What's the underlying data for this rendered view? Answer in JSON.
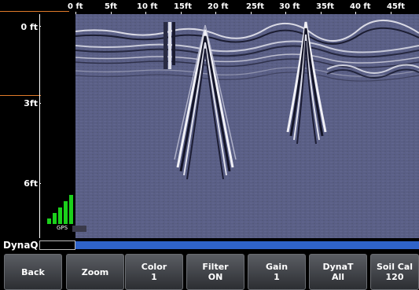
{
  "ruler": {
    "ticks": [
      "0 ft",
      "5ft",
      "10 ft",
      "15ft",
      "20 ft",
      "25ft",
      "30 ft",
      "35ft",
      "40 ft",
      "45ft"
    ]
  },
  "depth": {
    "labels": [
      "0 ft",
      "3ft",
      "6ft"
    ]
  },
  "gps": {
    "label": "GPS",
    "signal_bars": 5,
    "color": "#1bd01b"
  },
  "dynaq": {
    "label": "DynaQ",
    "bar_color": "#2f63c9"
  },
  "softkeys": [
    {
      "line1": "Back",
      "line2": ""
    },
    {
      "line1": "Zoom",
      "line2": ""
    },
    {
      "line1": "Color",
      "line2": "1"
    },
    {
      "line1": "Filter",
      "line2": "ON"
    },
    {
      "line1": "Gain",
      "line2": "1"
    },
    {
      "line1": "DynaT",
      "line2": "All"
    },
    {
      "line1": "Soil Cal",
      "line2": "120"
    }
  ],
  "colors": {
    "scan_background": "#5a5f86",
    "marker": "#e07a2a"
  }
}
